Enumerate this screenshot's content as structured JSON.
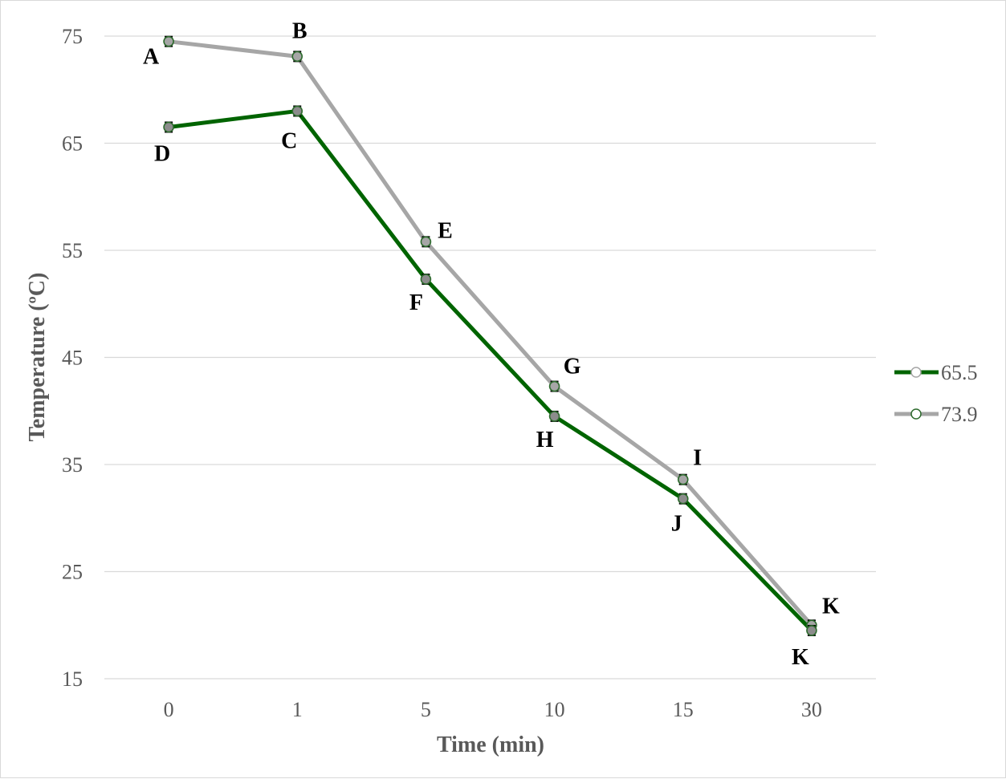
{
  "chart_data": {
    "type": "line",
    "title": "",
    "xlabel": "Time (min)",
    "ylabel": "Temperature (ºC)",
    "categories": [
      "0",
      "1",
      "5",
      "10",
      "15",
      "30"
    ],
    "y_ticks": [
      "15",
      "25",
      "35",
      "45",
      "55",
      "65",
      "75"
    ],
    "ylim": [
      15,
      75
    ],
    "grid": true,
    "legend_position": "right",
    "series": [
      {
        "name": "65.5",
        "color": "#006400",
        "values": [
          66.5,
          68.0,
          52.3,
          39.5,
          31.8,
          19.5
        ],
        "point_labels": [
          "D",
          "C",
          "F",
          "H",
          "J",
          "K"
        ]
      },
      {
        "name": "73.9",
        "color": "#a6a6a6",
        "values": [
          74.5,
          73.1,
          55.8,
          42.3,
          33.6,
          20.0
        ],
        "point_labels": [
          "A",
          "B",
          "E",
          "G",
          "I",
          "K"
        ]
      }
    ]
  }
}
